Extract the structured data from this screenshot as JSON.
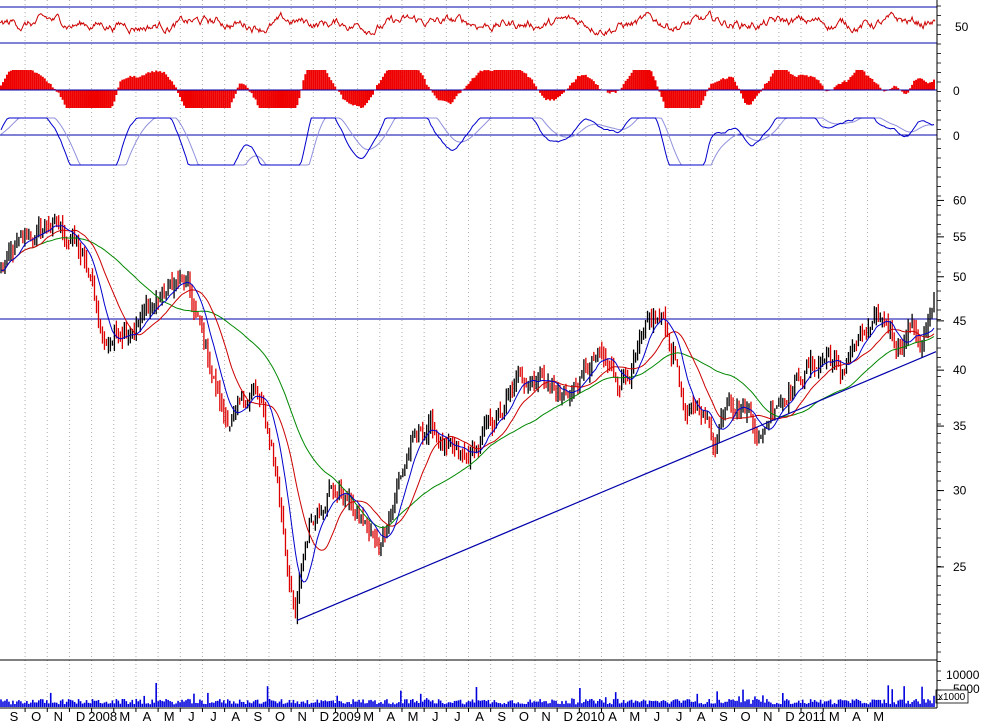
{
  "chart_data": {
    "type": "line",
    "x_axis": {
      "labels": [
        "S",
        "O",
        "N",
        "D",
        "2008",
        "M",
        "A",
        "M",
        "J",
        "J",
        "A",
        "S",
        "O",
        "N",
        "D",
        "2009",
        "M",
        "A",
        "M",
        "J",
        "J",
        "A",
        "S",
        "O",
        "N",
        "D",
        "2010",
        "A",
        "M",
        "J",
        "J",
        "A",
        "S",
        "O",
        "N",
        "D",
        "2011",
        "M",
        "A",
        "M"
      ]
    },
    "price_panel": {
      "y_ticks": [
        60,
        55,
        50,
        45,
        40,
        35,
        30,
        25
      ],
      "ylim": [
        20.5,
        63
      ],
      "scale": "log",
      "resistance_level": 45.2,
      "trendline": {
        "start": 22.0,
        "end": 41.8
      },
      "series": [
        {
          "style": "candlestick",
          "colors": [
            "#000000",
            "#dd0000"
          ],
          "anchors": [
            [
              0,
              50.5
            ],
            [
              0.02,
              53.5
            ],
            [
              0.05,
              56.5
            ],
            [
              0.07,
              55.5
            ],
            [
              0.08,
              54.5
            ],
            [
              0.1,
              47.5
            ],
            [
              0.11,
              42.5
            ],
            [
              0.13,
              44.5
            ],
            [
              0.15,
              45.5
            ],
            [
              0.17,
              47.5
            ],
            [
              0.19,
              49.5
            ],
            [
              0.2,
              48.2
            ],
            [
              0.22,
              41.5
            ],
            [
              0.24,
              35.5
            ],
            [
              0.26,
              36.5
            ],
            [
              0.27,
              38.5
            ],
            [
              0.29,
              33.5
            ],
            [
              0.305,
              26.5
            ],
            [
              0.315,
              21.8
            ],
            [
              0.33,
              27.5
            ],
            [
              0.35,
              30.5
            ],
            [
              0.37,
              29.5
            ],
            [
              0.39,
              27.5
            ],
            [
              0.405,
              26.0
            ],
            [
              0.42,
              29.5
            ],
            [
              0.44,
              33.5
            ],
            [
              0.46,
              35.0
            ],
            [
              0.48,
              32.5
            ],
            [
              0.5,
              32.0
            ],
            [
              0.52,
              34.5
            ],
            [
              0.54,
              36.5
            ],
            [
              0.56,
              39.5
            ],
            [
              0.58,
              40.0
            ],
            [
              0.6,
              37.5
            ],
            [
              0.62,
              39.0
            ],
            [
              0.64,
              41.0
            ],
            [
              0.66,
              39.0
            ],
            [
              0.68,
              41.0
            ],
            [
              0.7,
              44.5
            ],
            [
              0.71,
              44.8
            ],
            [
              0.725,
              40.5
            ],
            [
              0.735,
              35.0
            ],
            [
              0.75,
              37.0
            ],
            [
              0.765,
              33.5
            ],
            [
              0.78,
              38.5
            ],
            [
              0.8,
              36.5
            ],
            [
              0.815,
              34.2
            ],
            [
              0.83,
              37.5
            ],
            [
              0.85,
              39.0
            ],
            [
              0.87,
              40.5
            ],
            [
              0.89,
              41.5
            ],
            [
              0.9,
              39.0
            ],
            [
              0.91,
              42.0
            ],
            [
              0.93,
              43.5
            ],
            [
              0.95,
              44.5
            ],
            [
              0.96,
              42.5
            ],
            [
              0.975,
              44.8
            ],
            [
              0.985,
              43.0
            ],
            [
              1.0,
              45.8
            ]
          ]
        },
        {
          "type": "moving-average",
          "color": "#0000cc",
          "period": 10
        },
        {
          "type": "moving-average",
          "color": "#cc0000",
          "period": 21
        },
        {
          "type": "moving-average",
          "color": "#008800",
          "period": 50
        }
      ]
    },
    "indicator_panels": [
      {
        "type": "line",
        "color": "#cc0000",
        "y_ticks": [
          50
        ],
        "bands": [
          1,
          0
        ],
        "zero_line_label": "50",
        "values_range": [
          0,
          100
        ]
      },
      {
        "type": "histogram",
        "color": "#ee0000",
        "y_ticks": [
          0
        ],
        "zero_line_label": "0"
      },
      {
        "type": "line",
        "colors": [
          "#0000cc",
          "#9090dd"
        ],
        "y_ticks": [
          0
        ],
        "zero_line_label": "0"
      }
    ],
    "volume_panel": {
      "type": "bar",
      "color": "#0000dd",
      "y_ticks": [
        10000,
        5000
      ],
      "unit": "x1000"
    },
    "grid": true,
    "legend": "none"
  }
}
